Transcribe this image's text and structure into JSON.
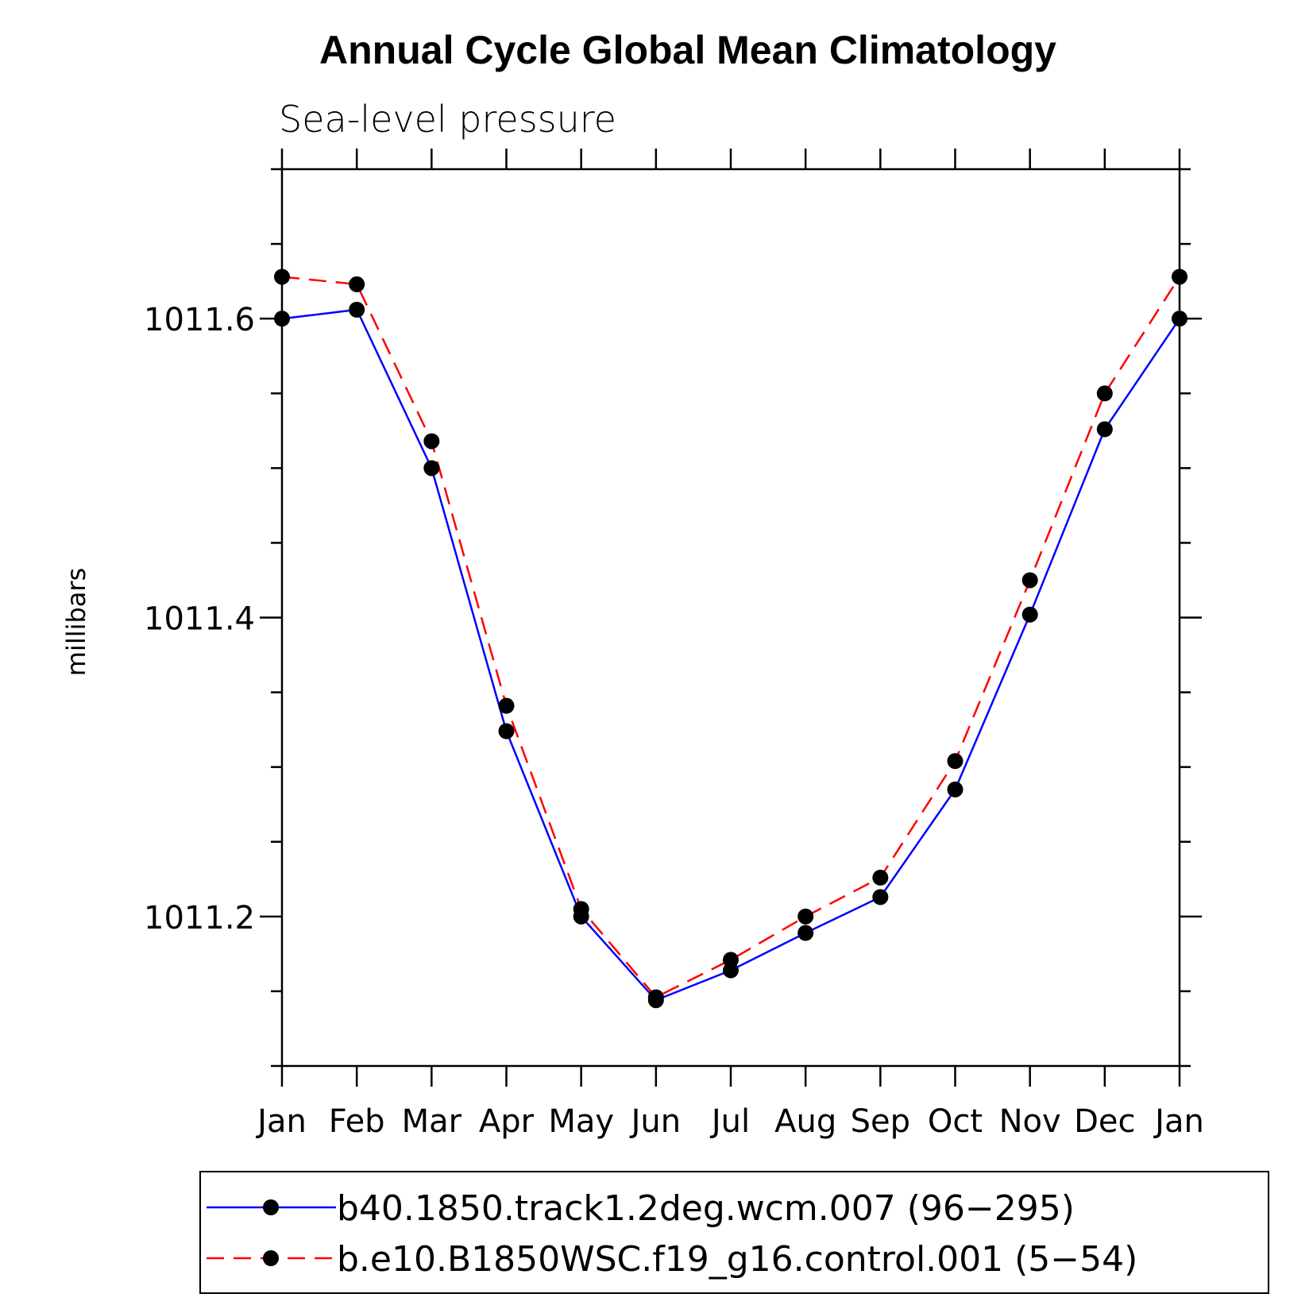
{
  "chart_data": {
    "type": "line",
    "title": "Annual Cycle Global Mean Climatology",
    "subtitle": "Sea-level pressure",
    "xlabel": "",
    "ylabel": "millibars",
    "categories": [
      "Jan",
      "Feb",
      "Mar",
      "Apr",
      "May",
      "Jun",
      "Jul",
      "Aug",
      "Sep",
      "Oct",
      "Nov",
      "Dec",
      "Jan"
    ],
    "ylim": [
      1011.1,
      1011.7
    ],
    "yticks": [
      1011.2,
      1011.4,
      1011.6
    ],
    "ytick_labels": [
      "1011.2",
      "1011.4",
      "1011.6"
    ],
    "grid": false,
    "legend_position": "bottom",
    "series": [
      {
        "name": "b40.1850.track1.2deg.wcm.007 (96−295)",
        "color": "#0000ff",
        "line_style": "solid",
        "marker": "filled-circle",
        "values": [
          1011.6,
          1011.606,
          1011.5,
          1011.324,
          1011.2,
          1011.144,
          1011.164,
          1011.189,
          1011.213,
          1011.285,
          1011.402,
          1011.526,
          1011.6
        ]
      },
      {
        "name": "b.e10.B1850WSC.f19_g16.control.001 (5−54)",
        "color": "#ff0000",
        "line_style": "dashed",
        "marker": "filled-circle",
        "values": [
          1011.628,
          1011.623,
          1011.518,
          1011.341,
          1011.205,
          1011.146,
          1011.171,
          1011.2,
          1011.226,
          1011.304,
          1011.425,
          1011.55,
          1011.628
        ]
      }
    ]
  }
}
